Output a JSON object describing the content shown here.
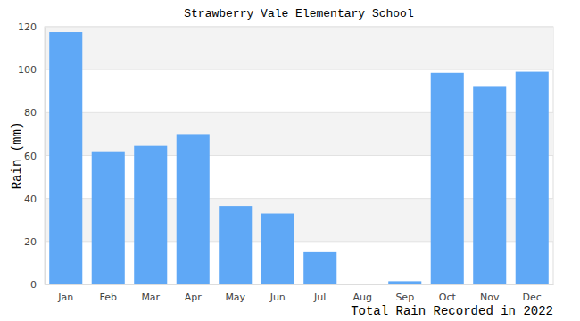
{
  "chart_data": {
    "type": "bar",
    "title": "Strawberry Vale Elementary School",
    "y_label": "Rain (mm)",
    "x_label": "Total Rain Recorded in 2022",
    "categories": [
      "Jan",
      "Feb",
      "Mar",
      "Apr",
      "May",
      "Jun",
      "Jul",
      "Aug",
      "Sep",
      "Oct",
      "Nov",
      "Dec"
    ],
    "values": [
      117.5,
      62,
      64.5,
      70,
      36.5,
      33,
      15,
      0,
      1.5,
      98.5,
      92,
      99
    ],
    "color": "#5fa8f6",
    "ylim": [
      0,
      120
    ],
    "yticks": [
      0,
      20,
      40,
      60,
      80,
      100,
      120
    ],
    "grid": true
  }
}
